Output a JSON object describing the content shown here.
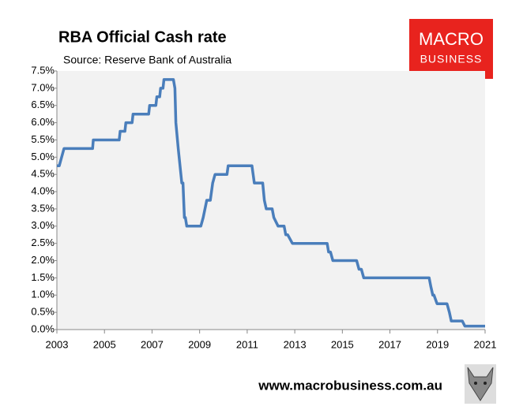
{
  "chart_data": {
    "type": "line",
    "title": "RBA Official Cash rate",
    "subtitle": "Source: Reserve Bank of Australia",
    "logo_text": [
      "MACRO",
      "BUSINESS"
    ],
    "footer": "www.macrobusiness.com.au",
    "x": [
      2003.0,
      2003.1,
      2003.3,
      2004.5,
      2004.53,
      2005.62,
      2005.66,
      2005.86,
      2005.9,
      2006.16,
      2006.2,
      2006.86,
      2006.9,
      2007.16,
      2007.2,
      2007.32,
      2007.36,
      2007.46,
      2007.5,
      2007.9,
      2007.96,
      2008.0,
      2008.1,
      2008.25,
      2008.3,
      2008.36,
      2008.4,
      2008.46,
      2008.6,
      2009.05,
      2009.15,
      2009.3,
      2009.45,
      2009.55,
      2009.65,
      2010.15,
      2010.2,
      2011.2,
      2011.25,
      2011.3,
      2011.65,
      2011.72,
      2011.8,
      2012.05,
      2012.12,
      2012.3,
      2012.55,
      2012.62,
      2012.7,
      2012.9,
      2012.97,
      2014.36,
      2014.42,
      2014.5,
      2014.6,
      2015.6,
      2015.7,
      2015.8,
      2015.9,
      2018.65,
      2018.72,
      2018.8,
      2018.85,
      2018.98,
      2019.05,
      2019.4,
      2019.5,
      2019.58,
      2020.04,
      2020.15,
      2021.0
    ],
    "series": [
      {
        "name": "Cash rate",
        "color": "#4a7ebb",
        "values": [
          4.75,
          4.75,
          5.25,
          5.25,
          5.5,
          5.5,
          5.75,
          5.75,
          6.0,
          6.0,
          6.25,
          6.25,
          6.5,
          6.5,
          6.75,
          6.75,
          7.0,
          7.0,
          7.25,
          7.25,
          7.0,
          6.0,
          5.25,
          4.25,
          4.25,
          3.25,
          3.25,
          3.0,
          3.0,
          3.0,
          3.25,
          3.75,
          3.75,
          4.25,
          4.5,
          4.5,
          4.75,
          4.75,
          4.5,
          4.25,
          4.25,
          3.75,
          3.5,
          3.5,
          3.25,
          3.0,
          3.0,
          2.75,
          2.75,
          2.5,
          2.5,
          2.5,
          2.25,
          2.25,
          2.0,
          2.0,
          1.75,
          1.75,
          1.5,
          1.5,
          1.25,
          1.0,
          1.0,
          0.75,
          0.75,
          0.75,
          0.5,
          0.25,
          0.25,
          0.1,
          0.1
        ]
      }
    ],
    "xlim": [
      2003,
      2021
    ],
    "xticks": [
      2003,
      2005,
      2007,
      2009,
      2011,
      2013,
      2015,
      2017,
      2019,
      2021
    ],
    "ylim": [
      0,
      7.5
    ],
    "yticks": [
      {
        "value": 0,
        "label": "0.0%"
      },
      {
        "value": 0.5,
        "label": "0.5%"
      },
      {
        "value": 1,
        "label": "1.0%"
      },
      {
        "value": 1.5,
        "label": "1.5%"
      },
      {
        "value": 2,
        "label": "2.0%"
      },
      {
        "value": 2.5,
        "label": "2.5%"
      },
      {
        "value": 3,
        "label": "3.0%"
      },
      {
        "value": 3.5,
        "label": "3.5%"
      },
      {
        "value": 4,
        "label": "4.0%"
      },
      {
        "value": 4.5,
        "label": "4.5%"
      },
      {
        "value": 5,
        "label": "5.0%"
      },
      {
        "value": 5.5,
        "label": "5.5%"
      },
      {
        "value": 6,
        "label": "6.0%"
      },
      {
        "value": 6.5,
        "label": "6.5%"
      },
      {
        "value": 7,
        "label": "7.0%"
      },
      {
        "value": 7.5,
        "label": "7.5%"
      }
    ],
    "grid": false
  }
}
